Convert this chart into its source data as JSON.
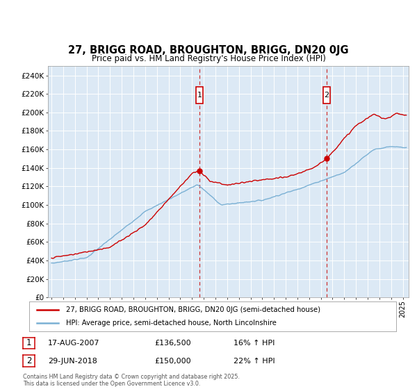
{
  "title": "27, BRIGG ROAD, BROUGHTON, BRIGG, DN20 0JG",
  "subtitle": "Price paid vs. HM Land Registry's House Price Index (HPI)",
  "ylim": [
    0,
    250000
  ],
  "yticks": [
    0,
    20000,
    40000,
    60000,
    80000,
    100000,
    120000,
    140000,
    160000,
    180000,
    200000,
    220000,
    240000
  ],
  "xlim_start": 1994.7,
  "xlim_end": 2025.5,
  "plot_bg_color": "#dce9f5",
  "grid_color": "#ffffff",
  "red_color": "#cc0000",
  "blue_color": "#7ab0d4",
  "marker1_x": 2007.63,
  "marker1_y": 136500,
  "marker1_label": "1",
  "marker1_date": "17-AUG-2007",
  "marker1_price": "£136,500",
  "marker1_hpi": "16% ↑ HPI",
  "marker2_x": 2018.49,
  "marker2_y": 150000,
  "marker2_label": "2",
  "marker2_date": "29-JUN-2018",
  "marker2_price": "£150,000",
  "marker2_hpi": "22% ↑ HPI",
  "legend_line1": "27, BRIGG ROAD, BROUGHTON, BRIGG, DN20 0JG (semi-detached house)",
  "legend_line2": "HPI: Average price, semi-detached house, North Lincolnshire",
  "footer": "Contains HM Land Registry data © Crown copyright and database right 2025.\nThis data is licensed under the Open Government Licence v3.0."
}
